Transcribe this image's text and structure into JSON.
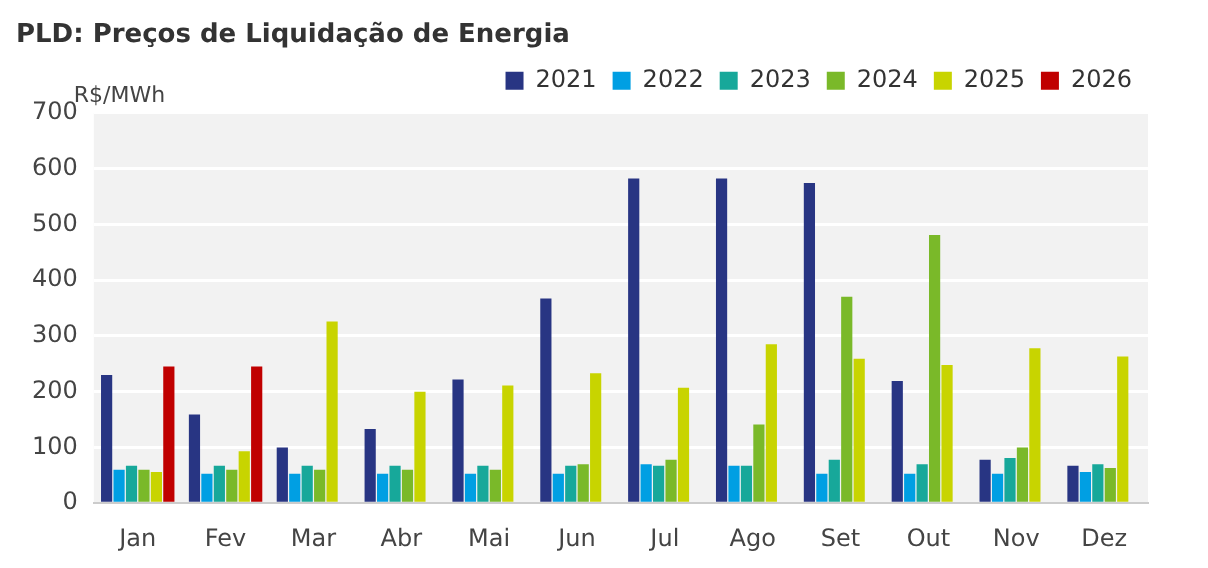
{
  "chart_data": {
    "type": "bar",
    "title": "PLD: Preços de Liquidação de Energia",
    "ylabel": "R$/MWh",
    "categories": [
      "Jan",
      "Fev",
      "Mar",
      "Abr",
      "Mai",
      "Jun",
      "Jul",
      "Ago",
      "Set",
      "Out",
      "Nov",
      "Dez"
    ],
    "series": [
      {
        "name": "2021",
        "color": "#283583",
        "values": [
          230,
          159,
          100,
          133,
          222,
          367,
          582,
          582,
          574,
          219,
          78,
          67
        ]
      },
      {
        "name": "2022",
        "color": "#009fe3",
        "values": [
          60,
          53,
          53,
          53,
          53,
          53,
          70,
          67,
          53,
          53,
          53,
          56
        ]
      },
      {
        "name": "2023",
        "color": "#17a89a",
        "values": [
          67,
          67,
          67,
          67,
          67,
          67,
          67,
          67,
          78,
          70,
          81,
          70
        ]
      },
      {
        "name": "2024",
        "color": "#7ab929",
        "values": [
          60,
          60,
          60,
          60,
          60,
          70,
          78,
          141,
          370,
          481,
          100,
          63
        ]
      },
      {
        "name": "2025",
        "color": "#c8d400",
        "values": [
          56,
          93,
          326,
          200,
          211,
          233,
          207,
          285,
          259,
          248,
          278,
          263
        ]
      },
      {
        "name": "2026",
        "color": "#c00000",
        "values": [
          245,
          245,
          null,
          null,
          null,
          null,
          null,
          null,
          null,
          null,
          null,
          null
        ]
      }
    ],
    "ylim": [
      0,
      700
    ],
    "yticks": [
      0,
      100,
      200,
      300,
      400,
      500,
      600,
      700
    ],
    "grid": "y",
    "legend": "top right"
  }
}
